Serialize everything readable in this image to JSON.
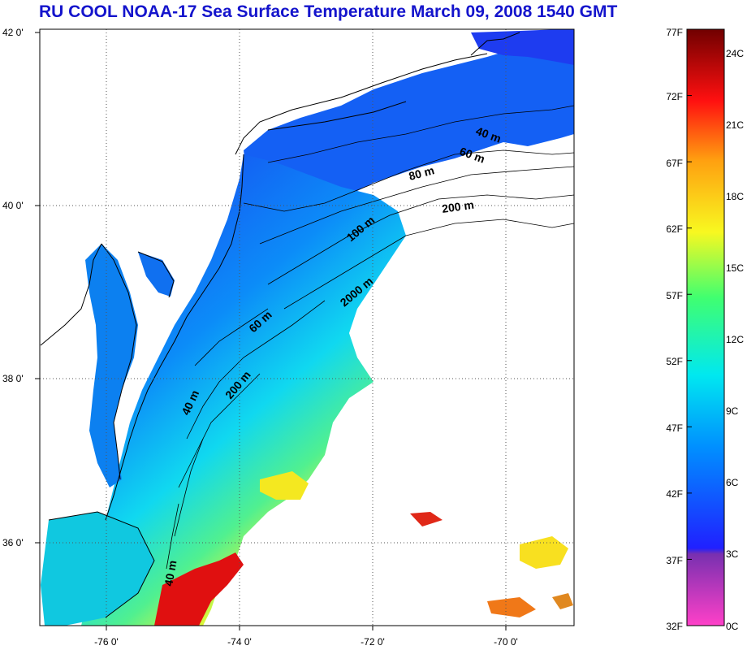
{
  "title": "RU COOL  NOAA-17 Sea Surface Temperature March 09, 2008 1540 GMT",
  "map": {
    "lat_ticks": [
      "42 0'",
      "40 0'",
      "38 0'",
      "36 0'"
    ],
    "lon_ticks": [
      "-76 0'",
      "-74 0'",
      "-72 0'",
      "-70 0'"
    ],
    "contour_labels": [
      "40 m",
      "60 m",
      "80 m",
      "200 m",
      "100 m",
      "2000 m",
      "60 m",
      "200 m",
      "40 m",
      "40 m"
    ]
  },
  "colorbar": {
    "fahrenheit_labels": [
      "77F",
      "72F",
      "67F",
      "62F",
      "57F",
      "52F",
      "47F",
      "42F",
      "37F",
      "32F"
    ],
    "celsius_labels": [
      "24C",
      "21C",
      "18C",
      "15C",
      "12C",
      "9C",
      "6C",
      "3C",
      "0C"
    ],
    "colors": {
      "c0": "#ff40c8",
      "c3": "#7830b0",
      "c4": "#2020ff",
      "c8": "#0090ff",
      "c9": "#00e8f0",
      "c13": "#40ff70",
      "c16": "#f8f820",
      "c19": "#ffa010",
      "c22": "#ff1010",
      "c25": "#700000"
    }
  }
}
